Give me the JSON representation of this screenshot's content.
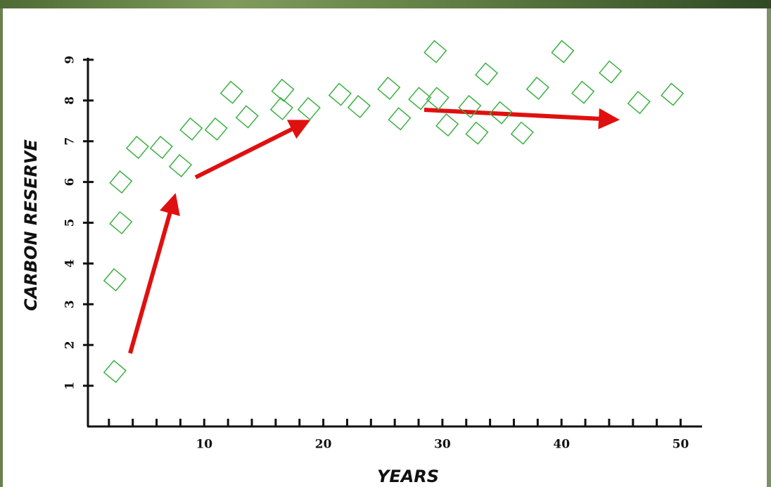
{
  "chart_data": {
    "type": "scatter",
    "x_label": "YEARS",
    "y_label": "CARBON RESERVE",
    "xlim": [
      0,
      52
    ],
    "ylim": [
      0,
      9.1
    ],
    "xticks": [
      10,
      20,
      30,
      40,
      50
    ],
    "xminor_ticks": [
      2,
      4,
      6,
      8,
      12,
      14,
      16,
      18,
      22,
      24,
      26,
      28,
      32,
      34,
      36,
      38,
      42,
      44,
      46,
      48
    ],
    "yticks": [
      1,
      2,
      3,
      4,
      5,
      6,
      7,
      8,
      9
    ],
    "color": "#3cb043",
    "x": [
      2.5,
      2.5,
      3.0,
      3.0,
      4.4,
      6.4,
      8.0,
      8.9,
      11.0,
      12.3,
      13.6,
      16.6,
      16.5,
      18.8,
      21.4,
      23.0,
      25.5,
      26.4,
      28.1,
      29.4,
      29.6,
      30.4,
      32.3,
      32.9,
      33.7,
      34.9,
      36.7,
      38.0,
      40.1,
      41.8,
      44.1,
      46.5,
      49.3
    ],
    "values": [
      1.35,
      3.6,
      5.0,
      6.0,
      6.85,
      6.85,
      6.4,
      7.3,
      7.3,
      8.2,
      7.6,
      8.25,
      7.8,
      7.8,
      8.15,
      7.85,
      8.3,
      7.55,
      8.05,
      9.2,
      8.05,
      7.4,
      7.85,
      7.2,
      8.65,
      7.7,
      7.2,
      8.3,
      9.2,
      8.2,
      8.7,
      7.95,
      8.15
    ]
  }
}
